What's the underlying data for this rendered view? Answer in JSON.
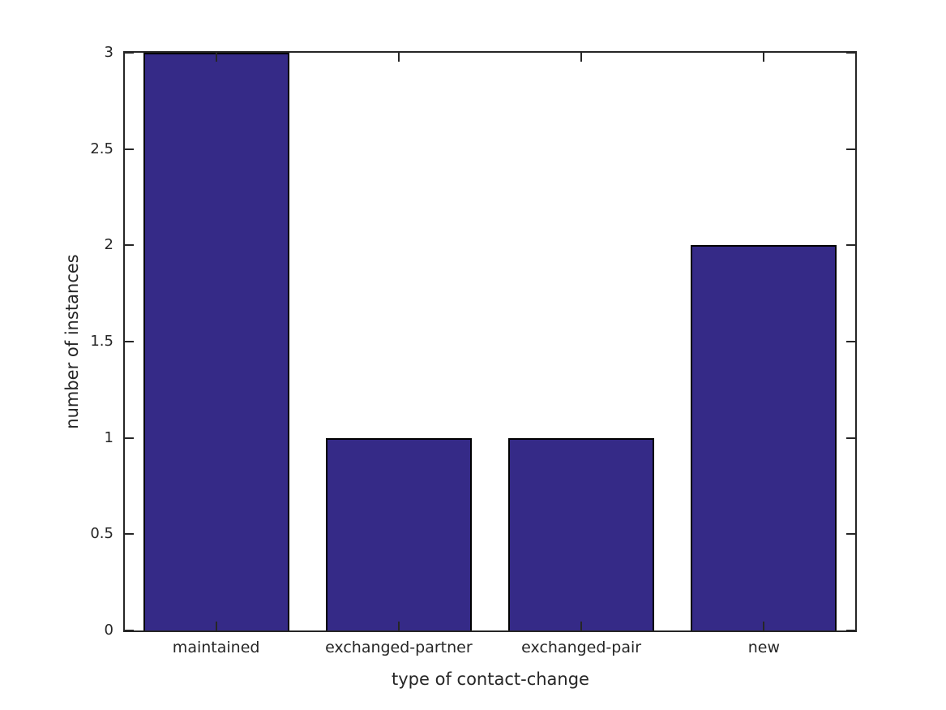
{
  "figure": {
    "background": "#ffffff",
    "axis_color": "#262626",
    "text_color": "#262626"
  },
  "chart_data": {
    "type": "bar",
    "categories": [
      "maintained",
      "exchanged-partner",
      "exchanged-pair",
      "new"
    ],
    "values": [
      3,
      1,
      1,
      2
    ],
    "title": "",
    "xlabel": "type of contact-change",
    "ylabel": "number of instances",
    "ylim": [
      0,
      3
    ],
    "yticks": [
      0,
      0.5,
      1,
      1.5,
      2,
      2.5,
      3
    ],
    "ytick_labels": [
      "0",
      "0.5",
      "1",
      "1.5",
      "2",
      "2.5",
      "3"
    ],
    "bar_color": "#352A87",
    "bar_edge_color": "#000000",
    "bar_width_fraction": 0.8,
    "grid": false,
    "legend": null,
    "box": true,
    "tick_direction": "in"
  }
}
